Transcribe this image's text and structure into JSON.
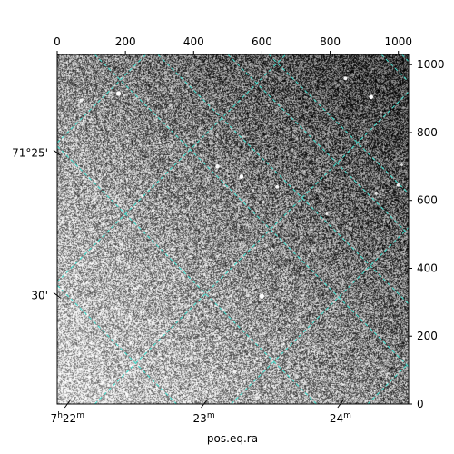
{
  "chart_data": {
    "type": "heatmap",
    "colormap": "gray",
    "image": {
      "x_range": [
        0,
        1030
      ],
      "y_range": [
        0,
        1030
      ]
    },
    "xlabel": "pos.eq.ra",
    "ylabel": "",
    "pixel_axes": {
      "xlim": [
        0,
        1030
      ],
      "ylim": [
        0,
        1030
      ],
      "x_ticks": [
        {
          "value": 0,
          "label": "0"
        },
        {
          "value": 200,
          "label": "200"
        },
        {
          "value": 400,
          "label": "400"
        },
        {
          "value": 600,
          "label": "600"
        },
        {
          "value": 800,
          "label": "800"
        },
        {
          "value": 1000,
          "label": "1000"
        }
      ],
      "y_ticks": [
        {
          "value": 0,
          "label": "0"
        },
        {
          "value": 200,
          "label": "200"
        },
        {
          "value": 400,
          "label": "400"
        },
        {
          "value": 600,
          "label": "600"
        },
        {
          "value": 800,
          "label": "800"
        },
        {
          "value": 1000,
          "label": "1000"
        }
      ]
    },
    "world_axes": {
      "ra_ticks": [
        {
          "x": 30,
          "label_h": "7",
          "label_m": "22"
        },
        {
          "x": 430,
          "label_h": "",
          "label_m": "23"
        },
        {
          "x": 830,
          "label_h": "",
          "label_m": "24"
        }
      ],
      "dec_ticks": [
        {
          "y": 740,
          "label": "71°25'"
        },
        {
          "y": 320,
          "label": "30'"
        }
      ]
    },
    "grid": {
      "on": true,
      "color": "#40e0d0",
      "style": "dashed",
      "family_a": [
        {
          "x1": 110,
          "y1": 1030,
          "x2": 1030,
          "y2": 110
        },
        {
          "x1": 0,
          "y1": 760,
          "x2": 760,
          "y2": 0
        },
        {
          "x1": 0,
          "y1": 350,
          "x2": 350,
          "y2": 0
        },
        {
          "x1": 295,
          "y1": 1030,
          "x2": 1030,
          "y2": 295
        },
        {
          "x1": 500,
          "y1": 1030,
          "x2": 1030,
          "y2": 500
        },
        {
          "x1": 620,
          "y1": 1030,
          "x2": 1030,
          "y2": 620
        },
        {
          "x1": 1010,
          "y1": 1030,
          "x2": 1030,
          "y2": 1010
        }
      ],
      "family_b": [
        {
          "x1": 0,
          "y1": 360,
          "x2": 670,
          "y2": 1030
        },
        {
          "x1": 110,
          "y1": 0,
          "x2": 1030,
          "y2": 920
        },
        {
          "x1": 510,
          "y1": 0,
          "x2": 1030,
          "y2": 520
        },
        {
          "x1": 910,
          "y1": 0,
          "x2": 1030,
          "y2": 120
        },
        {
          "x1": 0,
          "y1": 770,
          "x2": 260,
          "y2": 1030
        },
        {
          "x1": 950,
          "y1": 1030,
          "x2": 1030,
          "y2": 950
        }
      ]
    },
    "sources": [
      {
        "x": 180,
        "y": 915,
        "r": 7,
        "b": 1.0
      },
      {
        "x": 70,
        "y": 895,
        "r": 5,
        "b": 0.9
      },
      {
        "x": 210,
        "y": 840,
        "r": 4,
        "b": 0.8
      },
      {
        "x": 300,
        "y": 770,
        "r": 4,
        "b": 0.85
      },
      {
        "x": 470,
        "y": 700,
        "r": 6,
        "b": 0.95
      },
      {
        "x": 540,
        "y": 670,
        "r": 6,
        "b": 1.0
      },
      {
        "x": 645,
        "y": 640,
        "r": 5,
        "b": 0.95
      },
      {
        "x": 605,
        "y": 595,
        "r": 4,
        "b": 0.8
      },
      {
        "x": 410,
        "y": 770,
        "r": 3,
        "b": 0.7
      },
      {
        "x": 845,
        "y": 960,
        "r": 5,
        "b": 0.95
      },
      {
        "x": 920,
        "y": 905,
        "r": 6,
        "b": 1.0
      },
      {
        "x": 1000,
        "y": 645,
        "r": 5,
        "b": 0.9
      },
      {
        "x": 935,
        "y": 620,
        "r": 4,
        "b": 0.8
      },
      {
        "x": 1010,
        "y": 705,
        "r": 4,
        "b": 0.75
      },
      {
        "x": 550,
        "y": 550,
        "r": 3,
        "b": 0.7
      },
      {
        "x": 790,
        "y": 560,
        "r": 4,
        "b": 0.8
      },
      {
        "x": 580,
        "y": 460,
        "r": 4,
        "b": 0.75
      },
      {
        "x": 360,
        "y": 370,
        "r": 3,
        "b": 0.7
      },
      {
        "x": 510,
        "y": 320,
        "r": 4,
        "b": 0.8
      },
      {
        "x": 600,
        "y": 318,
        "r": 7,
        "b": 1.0
      },
      {
        "x": 200,
        "y": 365,
        "r": 3,
        "b": 0.7
      },
      {
        "x": 60,
        "y": 290,
        "r": 3,
        "b": 0.65
      },
      {
        "x": 475,
        "y": 195,
        "r": 4,
        "b": 0.8
      },
      {
        "x": 720,
        "y": 160,
        "r": 4,
        "b": 0.85
      },
      {
        "x": 850,
        "y": 210,
        "r": 3,
        "b": 0.7
      },
      {
        "x": 620,
        "y": 190,
        "r": 3,
        "b": 0.7
      },
      {
        "x": 520,
        "y": 95,
        "r": 5,
        "b": 0.9
      },
      {
        "x": 485,
        "y": 80,
        "r": 4,
        "b": 0.85
      },
      {
        "x": 330,
        "y": 115,
        "r": 3,
        "b": 0.75
      },
      {
        "x": 160,
        "y": 80,
        "r": 3,
        "b": 0.7
      },
      {
        "x": 270,
        "y": 60,
        "r": 3,
        "b": 0.7
      },
      {
        "x": 590,
        "y": 20,
        "r": 4,
        "b": 0.8
      },
      {
        "x": 930,
        "y": 40,
        "r": 3,
        "b": 0.75
      },
      {
        "x": 900,
        "y": 275,
        "r": 3,
        "b": 0.7
      },
      {
        "x": 100,
        "y": 840,
        "r": 3,
        "b": 0.7
      },
      {
        "x": 950,
        "y": 860,
        "r": 3,
        "b": 0.7
      },
      {
        "x": 120,
        "y": 545,
        "r": 3,
        "b": 0.7
      },
      {
        "x": 800,
        "y": 770,
        "r": 3,
        "b": 0.7
      },
      {
        "x": 1000,
        "y": 180,
        "r": 3,
        "b": 0.7
      }
    ]
  }
}
